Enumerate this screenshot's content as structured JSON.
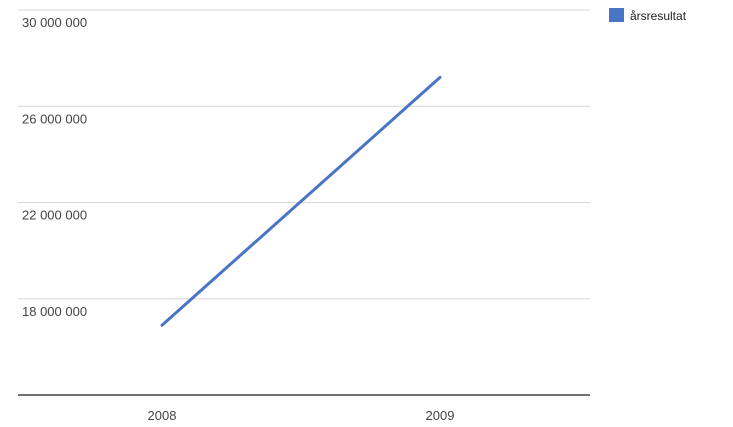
{
  "chart_data": {
    "type": "line",
    "x": [
      "2008",
      "2009"
    ],
    "series": [
      {
        "name": "årsresultat",
        "values": [
          16900000,
          27200000
        ],
        "color": "#4a74c4"
      }
    ],
    "y_ticks": [
      18000000,
      22000000,
      26000000,
      30000000
    ],
    "y_tick_labels": [
      "18 000 000",
      "22 000 000",
      "26 000 000",
      "30 000 000"
    ],
    "ylim": [
      14000000,
      30000000
    ],
    "grid": true,
    "legend_position": "top-right",
    "title": "",
    "xlabel": "",
    "ylabel": ""
  }
}
